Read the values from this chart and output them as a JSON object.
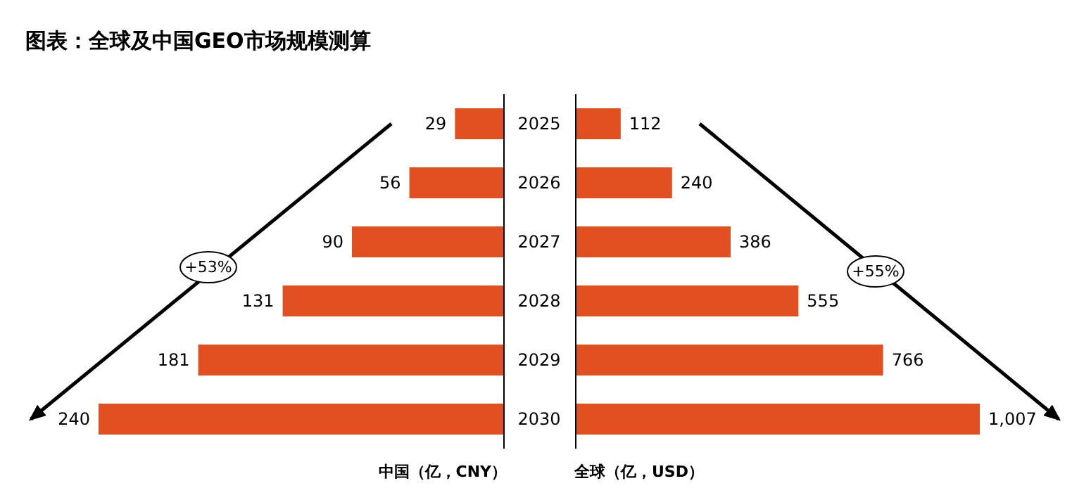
{
  "chart_data": [
    {
      "type": "bar",
      "orientation": "horizontal",
      "title": "图表：全球及中国GEO市场规模测算",
      "categories": [
        "2025",
        "2026",
        "2027",
        "2028",
        "2029",
        "2030"
      ],
      "values": [
        29,
        56,
        90,
        131,
        181,
        240
      ],
      "color": "#e05020",
      "data_labels": true,
      "xlabel": "中国（亿，CNY）",
      "annotations": [
        "+53%"
      ],
      "tick_labels": "y"
    },
    {
      "type": "bar",
      "orientation": "horizontal",
      "categories": [
        "2025",
        "2026",
        "2027",
        "2028",
        "2029",
        "2030"
      ],
      "values": [
        112,
        240,
        386,
        555,
        766,
        1007
      ],
      "color": "#e05020",
      "value_labels": [
        "112",
        "240",
        "386",
        "555",
        "766",
        "1,007"
      ],
      "xlabel": "全球（亿，USD）",
      "annotations": [
        "+55%"
      ],
      "tick_labels": false
    }
  ]
}
